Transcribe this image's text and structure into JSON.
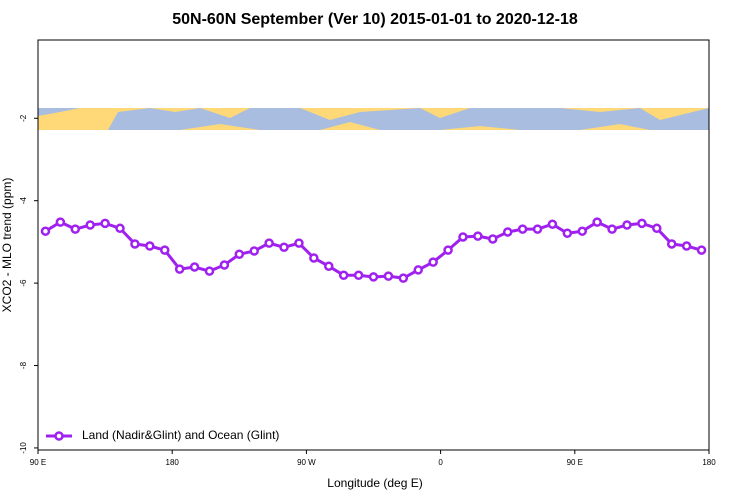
{
  "chart_data": {
    "type": "line",
    "title": "50N-60N September (Ver 10)   2015-01-01 to 2020-12-18",
    "xlabel": "Longitude (deg E)",
    "ylabel": "XCO2 - MLO trend (ppm)",
    "x": [
      95,
      105,
      115,
      125,
      135,
      145,
      155,
      165,
      175,
      185,
      195,
      205,
      215,
      225,
      235,
      245,
      255,
      265,
      275,
      285,
      295,
      305,
      315,
      325,
      335,
      345,
      355,
      365,
      375,
      385,
      395,
      405,
      415,
      425,
      435,
      445,
      455,
      465,
      475,
      485,
      495,
      505,
      515,
      525,
      535
    ],
    "series": [
      {
        "name": "Land (Nadir&Glint) and Ocean (Glint)",
        "color": "#a020f0",
        "values": [
          -4.74,
          -4.52,
          -4.69,
          -4.59,
          -4.55,
          -4.67,
          -5.05,
          -5.1,
          -5.2,
          -5.66,
          -5.61,
          -5.71,
          -5.56,
          -5.3,
          -5.22,
          -5.03,
          -5.13,
          -5.03,
          -5.39,
          -5.59,
          -5.81,
          -5.81,
          -5.85,
          -5.83,
          -5.88,
          -5.68,
          -5.49,
          -5.2,
          -4.88,
          -4.86,
          -4.93,
          -4.76,
          -4.69,
          -4.69,
          -4.57,
          -4.79,
          -4.74,
          -4.52,
          -4.69,
          -4.59,
          -4.55,
          -4.67,
          -5.05,
          -5.1,
          -5.2
        ]
      }
    ],
    "xlim": [
      90,
      540
    ],
    "xticks": [
      {
        "value": 90,
        "label": "90 E"
      },
      180,
      {
        "value": 270,
        "label": "90 W"
      },
      {
        "value": 360,
        "label": "0"
      },
      {
        "value": 450,
        "label": "90 E"
      },
      {
        "value": 540,
        "label": "180"
      }
    ],
    "ylim": [
      -10.05,
      -0.1
    ],
    "yticks": [
      -2,
      -4,
      -6,
      -8,
      -10
    ],
    "legend": "bottom-left"
  }
}
